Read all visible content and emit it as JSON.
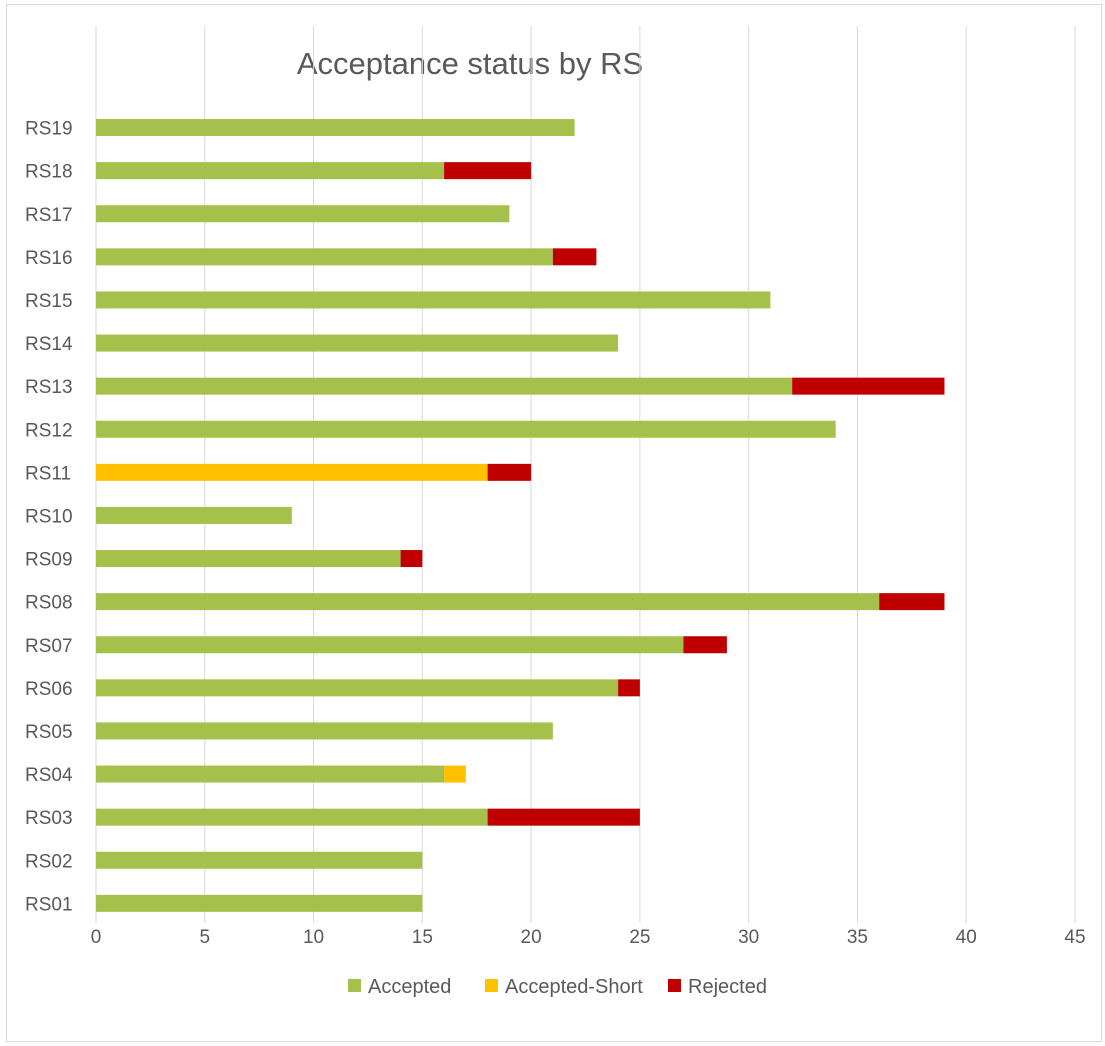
{
  "chart_data": {
    "type": "bar",
    "orientation": "horizontal",
    "stacked": true,
    "title": "Acceptance status by RS",
    "xlabel": "",
    "ylabel": "",
    "xlim": [
      0,
      45
    ],
    "x_ticks": [
      0,
      5,
      10,
      15,
      20,
      25,
      30,
      35,
      40,
      45
    ],
    "grid": "vertical",
    "legend_position": "bottom",
    "categories": [
      "RS01",
      "RS02",
      "RS03",
      "RS04",
      "RS05",
      "RS06",
      "RS07",
      "RS08",
      "RS09",
      "RS10",
      "RS11",
      "RS12",
      "RS13",
      "RS14",
      "RS15",
      "RS16",
      "RS17",
      "RS18",
      "RS19"
    ],
    "series": [
      {
        "name": "Accepted",
        "color": "#a5c14b",
        "values": [
          15,
          15,
          18,
          16,
          21,
          24,
          27,
          36,
          14,
          9,
          0,
          34,
          32,
          24,
          31,
          21,
          19,
          16,
          22
        ]
      },
      {
        "name": "Accepted-Short",
        "color": "#ffc000",
        "values": [
          0,
          0,
          0,
          1,
          0,
          0,
          0,
          0,
          0,
          0,
          18,
          0,
          0,
          0,
          0,
          0,
          0,
          0,
          0
        ]
      },
      {
        "name": "Rejected",
        "color": "#c00000",
        "values": [
          0,
          0,
          7,
          0,
          0,
          1,
          2,
          3,
          1,
          0,
          2,
          0,
          7,
          0,
          0,
          2,
          0,
          4,
          0
        ]
      }
    ]
  }
}
